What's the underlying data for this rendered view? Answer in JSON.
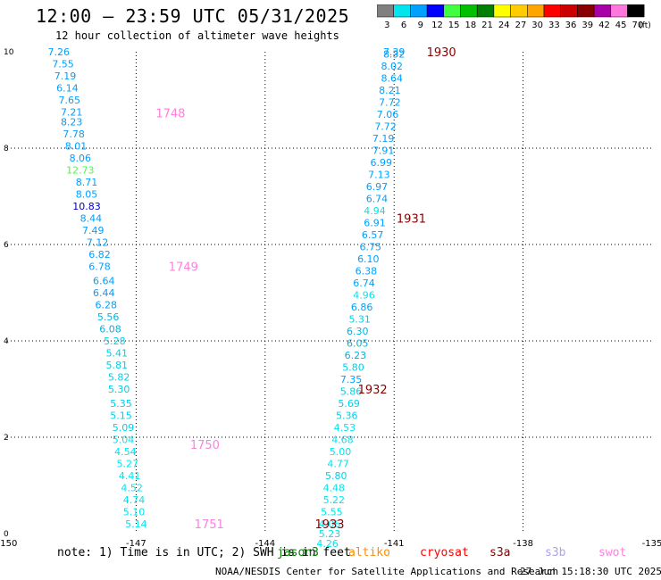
{
  "header": {
    "title": "12:00 – 23:59 UTC 05/31/2025",
    "subtitle": "12 hour collection of altimeter wave heights"
  },
  "colorbar": {
    "labels": [
      "3",
      "6",
      "9",
      "12",
      "15",
      "18",
      "21",
      "24",
      "27",
      "30",
      "33",
      "36",
      "39",
      "42",
      "45",
      "70"
    ],
    "unit": "(ft)",
    "colors": [
      "#808080",
      "#00e5ee",
      "#00a0ff",
      "#0000ff",
      "#40ff40",
      "#00c000",
      "#008000",
      "#ffff00",
      "#ffcc00",
      "#ffa500",
      "#ff0000",
      "#cc0000",
      "#880000",
      "#aa00aa",
      "#ff77dd",
      "#000000"
    ]
  },
  "chart_data": {
    "type": "scatter",
    "xlim": [
      -150,
      -135
    ],
    "ylim": [
      0,
      10
    ],
    "x_ticks": [
      "-150",
      "-147",
      "-144",
      "-141",
      "-138",
      "-135"
    ],
    "y_ticks": [
      "0",
      "2",
      "4",
      "6",
      "8",
      "10"
    ],
    "grid": true,
    "tracks": [
      {
        "satellite": "swot",
        "color": "#ff80e0",
        "time_labels": [
          {
            "text": "1748",
            "x": -146.2,
            "y": 8.73
          },
          {
            "text": "1749",
            "x": -145.9,
            "y": 5.55
          },
          {
            "text": "1750",
            "x": -145.4,
            "y": 1.85
          },
          {
            "text": "1751",
            "x": -145.3,
            "y": 0.2
          }
        ],
        "values": [
          {
            "x": -148.8,
            "y": 10.0,
            "v": "7.26",
            "c": "#00a0ff"
          },
          {
            "x": -148.7,
            "y": 9.75,
            "v": "7.55",
            "c": "#00a0ff"
          },
          {
            "x": -148.65,
            "y": 9.5,
            "v": "7.19",
            "c": "#00a0ff"
          },
          {
            "x": -148.6,
            "y": 9.25,
            "v": "6.14",
            "c": "#00a0ff"
          },
          {
            "x": -148.55,
            "y": 9.0,
            "v": "7.65",
            "c": "#00a0ff"
          },
          {
            "x": -148.5,
            "y": 8.75,
            "v": "7.21",
            "c": "#00a0ff"
          },
          {
            "x": -148.5,
            "y": 8.55,
            "v": "8.23",
            "c": "#00a0ff"
          },
          {
            "x": -148.45,
            "y": 8.3,
            "v": "7.78",
            "c": "#00a0ff"
          },
          {
            "x": -148.4,
            "y": 8.05,
            "v": "8.01",
            "c": "#00a0ff"
          },
          {
            "x": -148.3,
            "y": 7.8,
            "v": "8.06",
            "c": "#00a0ff"
          },
          {
            "x": -148.3,
            "y": 7.55,
            "v": "12.73",
            "c": "#40ff40"
          },
          {
            "x": -148.15,
            "y": 7.3,
            "v": "8.71",
            "c": "#00a0ff"
          },
          {
            "x": -148.15,
            "y": 7.05,
            "v": "8.05",
            "c": "#00a0ff"
          },
          {
            "x": -148.15,
            "y": 6.8,
            "v": "10.83",
            "c": "#0000cc"
          },
          {
            "x": -148.05,
            "y": 6.55,
            "v": "8.44",
            "c": "#00a0ff"
          },
          {
            "x": -148.0,
            "y": 6.3,
            "v": "7.49",
            "c": "#00a0ff"
          },
          {
            "x": -147.9,
            "y": 6.05,
            "v": "7.12",
            "c": "#00a0ff"
          },
          {
            "x": -147.85,
            "y": 5.8,
            "v": "6.82",
            "c": "#00a0ff"
          },
          {
            "x": -147.85,
            "y": 5.55,
            "v": "6.78",
            "c": "#00a0ff"
          },
          {
            "x": -147.75,
            "y": 5.25,
            "v": "6.64",
            "c": "#00a0ff"
          },
          {
            "x": -147.75,
            "y": 5.0,
            "v": "6.44",
            "c": "#00a0ff"
          },
          {
            "x": -147.7,
            "y": 4.75,
            "v": "6.28",
            "c": "#00a0ff"
          },
          {
            "x": -147.65,
            "y": 4.5,
            "v": "5.56",
            "c": "#00b4e0"
          },
          {
            "x": -147.6,
            "y": 4.25,
            "v": "6.08",
            "c": "#00b4e0"
          },
          {
            "x": -147.5,
            "y": 4.0,
            "v": "5.28",
            "c": "#00d0e8"
          },
          {
            "x": -147.45,
            "y": 3.75,
            "v": "5.41",
            "c": "#00d0e8"
          },
          {
            "x": -147.45,
            "y": 3.5,
            "v": "5.81",
            "c": "#00d0e8"
          },
          {
            "x": -147.4,
            "y": 3.25,
            "v": "5.82",
            "c": "#00d0e8"
          },
          {
            "x": -147.4,
            "y": 3.0,
            "v": "5.30",
            "c": "#00d0e8"
          },
          {
            "x": -147.35,
            "y": 2.7,
            "v": "5.35",
            "c": "#00d0e8"
          },
          {
            "x": -147.35,
            "y": 2.45,
            "v": "5.15",
            "c": "#00d0e8"
          },
          {
            "x": -147.3,
            "y": 2.2,
            "v": "5.09",
            "c": "#00d0e8"
          },
          {
            "x": -147.3,
            "y": 1.95,
            "v": "5.04",
            "c": "#00e5ee"
          },
          {
            "x": -147.25,
            "y": 1.7,
            "v": "4.54",
            "c": "#00e5ee"
          },
          {
            "x": -147.2,
            "y": 1.45,
            "v": "5.27",
            "c": "#00e5ee"
          },
          {
            "x": -147.15,
            "y": 1.2,
            "v": "4.41",
            "c": "#00e5ee"
          },
          {
            "x": -147.1,
            "y": 0.95,
            "v": "4.52",
            "c": "#00e5ee"
          },
          {
            "x": -147.05,
            "y": 0.7,
            "v": "4.74",
            "c": "#00e5ee"
          },
          {
            "x": -147.05,
            "y": 0.45,
            "v": "5.10",
            "c": "#00e5ee"
          },
          {
            "x": -147.0,
            "y": 0.2,
            "v": "5.14",
            "c": "#00e5ee"
          }
        ]
      },
      {
        "satellite": "s3a",
        "color": "#880000",
        "time_labels": [
          {
            "text": "1930",
            "x": -139.9,
            "y": 10.0
          },
          {
            "text": "1931",
            "x": -140.6,
            "y": 6.55
          },
          {
            "text": "1932",
            "x": -141.5,
            "y": 3.0
          },
          {
            "text": "1933",
            "x": -142.5,
            "y": 0.2
          }
        ],
        "values": [
          {
            "x": -141.0,
            "y": 10.0,
            "v": "7.39",
            "c": "#00a0ff"
          },
          {
            "x": -141.0,
            "y": 9.95,
            "v": "8.32",
            "c": "#00a0ff"
          },
          {
            "x": -141.05,
            "y": 9.7,
            "v": "8.02",
            "c": "#00a0ff"
          },
          {
            "x": -141.05,
            "y": 9.45,
            "v": "8.64",
            "c": "#00a0ff"
          },
          {
            "x": -141.1,
            "y": 9.2,
            "v": "8.21",
            "c": "#00a0ff"
          },
          {
            "x": -141.1,
            "y": 8.95,
            "v": "7.72",
            "c": "#00a0ff"
          },
          {
            "x": -141.15,
            "y": 8.7,
            "v": "7.06",
            "c": "#00a0ff"
          },
          {
            "x": -141.2,
            "y": 8.45,
            "v": "7.72",
            "c": "#00a0ff"
          },
          {
            "x": -141.25,
            "y": 8.2,
            "v": "7.19",
            "c": "#00a0ff"
          },
          {
            "x": -141.25,
            "y": 7.95,
            "v": "7.91",
            "c": "#00a0ff"
          },
          {
            "x": -141.3,
            "y": 7.7,
            "v": "6.99",
            "c": "#00a0ff"
          },
          {
            "x": -141.35,
            "y": 7.45,
            "v": "7.13",
            "c": "#00a0ff"
          },
          {
            "x": -141.4,
            "y": 7.2,
            "v": "6.97",
            "c": "#00a0ff"
          },
          {
            "x": -141.4,
            "y": 6.95,
            "v": "6.74",
            "c": "#00a0ff"
          },
          {
            "x": -141.45,
            "y": 6.7,
            "v": "4.94",
            "c": "#00e5ee"
          },
          {
            "x": -141.45,
            "y": 6.45,
            "v": "6.91",
            "c": "#00a0ff"
          },
          {
            "x": -141.5,
            "y": 6.2,
            "v": "6.57",
            "c": "#00a0ff"
          },
          {
            "x": -141.55,
            "y": 5.95,
            "v": "6.75",
            "c": "#00a0ff"
          },
          {
            "x": -141.6,
            "y": 5.7,
            "v": "6.10",
            "c": "#00a0ff"
          },
          {
            "x": -141.65,
            "y": 5.45,
            "v": "6.38",
            "c": "#00a0ff"
          },
          {
            "x": -141.7,
            "y": 5.2,
            "v": "6.74",
            "c": "#00a0ff"
          },
          {
            "x": -141.7,
            "y": 4.95,
            "v": "4.96",
            "c": "#00e5ee"
          },
          {
            "x": -141.75,
            "y": 4.7,
            "v": "6.86",
            "c": "#00a0ff"
          },
          {
            "x": -141.8,
            "y": 4.45,
            "v": "5.31",
            "c": "#00d0e8"
          },
          {
            "x": -141.85,
            "y": 4.2,
            "v": "6.30",
            "c": "#00b4e0"
          },
          {
            "x": -141.85,
            "y": 3.95,
            "v": "6.05",
            "c": "#00b4e0"
          },
          {
            "x": -141.9,
            "y": 3.7,
            "v": "6.23",
            "c": "#00b4e0"
          },
          {
            "x": -141.95,
            "y": 3.45,
            "v": "5.80",
            "c": "#00d0e8"
          },
          {
            "x": -142.0,
            "y": 3.2,
            "v": "7.35",
            "c": "#00a0ff"
          },
          {
            "x": -142.0,
            "y": 2.95,
            "v": "5.86",
            "c": "#00d0e8"
          },
          {
            "x": -142.05,
            "y": 2.7,
            "v": "5.69",
            "c": "#00d0e8"
          },
          {
            "x": -142.1,
            "y": 2.45,
            "v": "5.36",
            "c": "#00d0e8"
          },
          {
            "x": -142.15,
            "y": 2.2,
            "v": "4.53",
            "c": "#00e5ee"
          },
          {
            "x": -142.2,
            "y": 1.95,
            "v": "4.68",
            "c": "#00e5ee"
          },
          {
            "x": -142.25,
            "y": 1.7,
            "v": "5.00",
            "c": "#00e5ee"
          },
          {
            "x": -142.3,
            "y": 1.45,
            "v": "4.77",
            "c": "#00e5ee"
          },
          {
            "x": -142.35,
            "y": 1.2,
            "v": "5.80",
            "c": "#00d0e8"
          },
          {
            "x": -142.4,
            "y": 0.95,
            "v": "4.48",
            "c": "#00e5ee"
          },
          {
            "x": -142.4,
            "y": 0.7,
            "v": "5.22",
            "c": "#00e5ee"
          },
          {
            "x": -142.45,
            "y": 0.45,
            "v": "5.55",
            "c": "#00e5ee"
          },
          {
            "x": -142.5,
            "y": 0.2,
            "v": "4.06",
            "c": "#00e5ee"
          },
          {
            "x": -142.5,
            "y": 0.0,
            "v": "5.23",
            "c": "#00e5ee"
          },
          {
            "x": -142.55,
            "y": -0.2,
            "v": "4.26",
            "c": "#00e5ee"
          }
        ]
      }
    ]
  },
  "footer": {
    "note": "note: 1) Time is in UTC; 2) SWH is in feet",
    "legend": [
      {
        "name": "jason3",
        "color": "#008000"
      },
      {
        "name": "altiko",
        "color": "#ff8c00"
      },
      {
        "name": "cryosat",
        "color": "#ff0000"
      },
      {
        "name": "s3a",
        "color": "#880000"
      },
      {
        "name": "s3b",
        "color": "#b0a0f0"
      },
      {
        "name": "swot",
        "color": "#ff80e0"
      }
    ],
    "credit": "NOAA/NESDIS Center for Satellite Applications and Research",
    "date": "27 Jun 15:18:30 UTC 2025"
  }
}
